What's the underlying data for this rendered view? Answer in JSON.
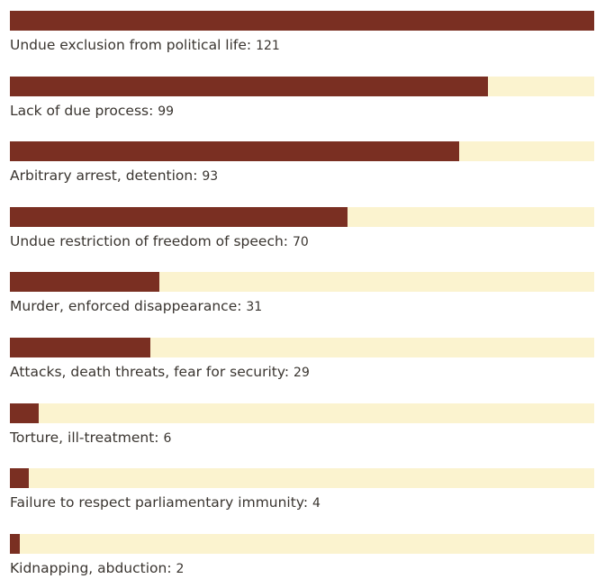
{
  "chart_data": {
    "type": "bar",
    "orientation": "horizontal",
    "title": "",
    "xlabel": "",
    "ylabel": "",
    "xlim": [
      0,
      121
    ],
    "grid": false,
    "legend": "none",
    "colors": {
      "fill": "#7a2f22",
      "track": "#fbf3cf",
      "text": "#3a3530"
    },
    "categories": [
      "Undue exclusion from political life",
      "Lack of due process",
      "Arbitrary arrest, detention",
      "Undue restriction of freedom of speech",
      "Murder, enforced disappearance",
      "Attacks, death threats, fear for security",
      "Torture, ill-treatment",
      "Failure to respect parliamentary immunity",
      "Kidnapping, abduction"
    ],
    "values": [
      121,
      99,
      93,
      70,
      31,
      29,
      6,
      4,
      2
    ]
  }
}
